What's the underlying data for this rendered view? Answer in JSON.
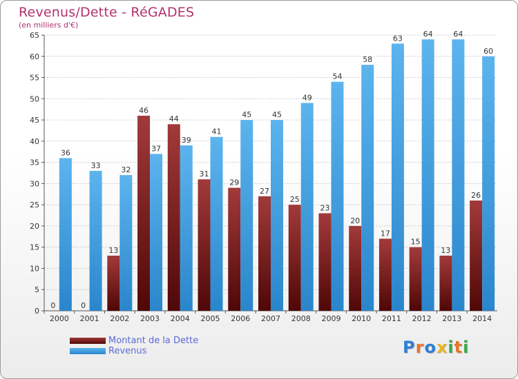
{
  "header": {
    "title": "Revenus/Dette - RéGADES",
    "subtitle": "(en milliers d'€)"
  },
  "logo": {
    "letters": [
      "P",
      "r",
      "o",
      "x",
      "i",
      "t",
      "i"
    ],
    "colors": [
      "#2f7fd6",
      "#e8732a",
      "#2f7fd6",
      "#e8b52a",
      "#3aa84a",
      "#e8732a",
      "#3aa84a"
    ]
  },
  "legend": {
    "items": [
      {
        "label": "Montant de la Dette",
        "color": "#7a1a1a"
      },
      {
        "label": "Revenus",
        "color": "#3a9be0"
      }
    ]
  },
  "chart_data": {
    "type": "bar",
    "title": "Revenus/Dette - RéGADES",
    "subtitle": "(en milliers d'€)",
    "categories": [
      "2000",
      "2001",
      "2002",
      "2003",
      "2004",
      "2005",
      "2006",
      "2007",
      "2008",
      "2009",
      "2010",
      "2011",
      "2012",
      "2013",
      "2014"
    ],
    "series": [
      {
        "name": "Montant de la Dette",
        "values": [
          0,
          0,
          13,
          46,
          44,
          31,
          29,
          27,
          25,
          23,
          20,
          17,
          15,
          13,
          26
        ],
        "color": "#7a1a1a"
      },
      {
        "name": "Revenus",
        "values": [
          36,
          33,
          32,
          37,
          39,
          41,
          45,
          45,
          49,
          54,
          58,
          63,
          64,
          64,
          60
        ],
        "color": "#3a9be0"
      }
    ],
    "ylim": [
      0,
      65
    ],
    "yticks": [
      0,
      5,
      10,
      15,
      20,
      25,
      30,
      35,
      40,
      45,
      50,
      55,
      60,
      65
    ],
    "grid": true,
    "legend_position": "bottom-left"
  }
}
